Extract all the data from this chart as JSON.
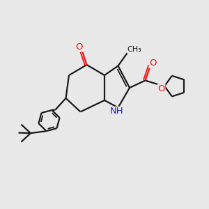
{
  "bg_color": "#e8e8e8",
  "bond_color": "#1a1a1a",
  "bond_width": 1.6,
  "atom_colors": {
    "O": "#ee1111",
    "N": "#2222dd",
    "C": "#1a1a1a"
  },
  "font_size": 8.5,
  "fig_size": [
    3.0,
    3.0
  ],
  "dpi": 100
}
